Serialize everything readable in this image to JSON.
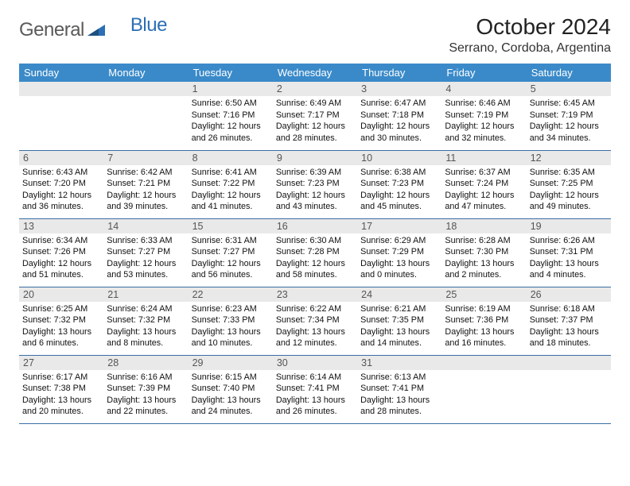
{
  "brand": {
    "part1": "General",
    "part2": "Blue"
  },
  "title": "October 2024",
  "location": "Serrano, Cordoba, Argentina",
  "colors": {
    "header_bg": "#3a8ac9",
    "row_sep": "#3a6fa5",
    "daynum_bg": "#e9e9e9",
    "logo_gray": "#5a5a5a",
    "logo_blue": "#2b6fb5"
  },
  "weekdays": [
    "Sunday",
    "Monday",
    "Tuesday",
    "Wednesday",
    "Thursday",
    "Friday",
    "Saturday"
  ],
  "first_weekday_index": 2,
  "days": [
    {
      "n": 1,
      "sr": "6:50 AM",
      "ss": "7:16 PM",
      "dl": "12 hours and 26 minutes."
    },
    {
      "n": 2,
      "sr": "6:49 AM",
      "ss": "7:17 PM",
      "dl": "12 hours and 28 minutes."
    },
    {
      "n": 3,
      "sr": "6:47 AM",
      "ss": "7:18 PM",
      "dl": "12 hours and 30 minutes."
    },
    {
      "n": 4,
      "sr": "6:46 AM",
      "ss": "7:19 PM",
      "dl": "12 hours and 32 minutes."
    },
    {
      "n": 5,
      "sr": "6:45 AM",
      "ss": "7:19 PM",
      "dl": "12 hours and 34 minutes."
    },
    {
      "n": 6,
      "sr": "6:43 AM",
      "ss": "7:20 PM",
      "dl": "12 hours and 36 minutes."
    },
    {
      "n": 7,
      "sr": "6:42 AM",
      "ss": "7:21 PM",
      "dl": "12 hours and 39 minutes."
    },
    {
      "n": 8,
      "sr": "6:41 AM",
      "ss": "7:22 PM",
      "dl": "12 hours and 41 minutes."
    },
    {
      "n": 9,
      "sr": "6:39 AM",
      "ss": "7:23 PM",
      "dl": "12 hours and 43 minutes."
    },
    {
      "n": 10,
      "sr": "6:38 AM",
      "ss": "7:23 PM",
      "dl": "12 hours and 45 minutes."
    },
    {
      "n": 11,
      "sr": "6:37 AM",
      "ss": "7:24 PM",
      "dl": "12 hours and 47 minutes."
    },
    {
      "n": 12,
      "sr": "6:35 AM",
      "ss": "7:25 PM",
      "dl": "12 hours and 49 minutes."
    },
    {
      "n": 13,
      "sr": "6:34 AM",
      "ss": "7:26 PM",
      "dl": "12 hours and 51 minutes."
    },
    {
      "n": 14,
      "sr": "6:33 AM",
      "ss": "7:27 PM",
      "dl": "12 hours and 53 minutes."
    },
    {
      "n": 15,
      "sr": "6:31 AM",
      "ss": "7:27 PM",
      "dl": "12 hours and 56 minutes."
    },
    {
      "n": 16,
      "sr": "6:30 AM",
      "ss": "7:28 PM",
      "dl": "12 hours and 58 minutes."
    },
    {
      "n": 17,
      "sr": "6:29 AM",
      "ss": "7:29 PM",
      "dl": "13 hours and 0 minutes."
    },
    {
      "n": 18,
      "sr": "6:28 AM",
      "ss": "7:30 PM",
      "dl": "13 hours and 2 minutes."
    },
    {
      "n": 19,
      "sr": "6:26 AM",
      "ss": "7:31 PM",
      "dl": "13 hours and 4 minutes."
    },
    {
      "n": 20,
      "sr": "6:25 AM",
      "ss": "7:32 PM",
      "dl": "13 hours and 6 minutes."
    },
    {
      "n": 21,
      "sr": "6:24 AM",
      "ss": "7:32 PM",
      "dl": "13 hours and 8 minutes."
    },
    {
      "n": 22,
      "sr": "6:23 AM",
      "ss": "7:33 PM",
      "dl": "13 hours and 10 minutes."
    },
    {
      "n": 23,
      "sr": "6:22 AM",
      "ss": "7:34 PM",
      "dl": "13 hours and 12 minutes."
    },
    {
      "n": 24,
      "sr": "6:21 AM",
      "ss": "7:35 PM",
      "dl": "13 hours and 14 minutes."
    },
    {
      "n": 25,
      "sr": "6:19 AM",
      "ss": "7:36 PM",
      "dl": "13 hours and 16 minutes."
    },
    {
      "n": 26,
      "sr": "6:18 AM",
      "ss": "7:37 PM",
      "dl": "13 hours and 18 minutes."
    },
    {
      "n": 27,
      "sr": "6:17 AM",
      "ss": "7:38 PM",
      "dl": "13 hours and 20 minutes."
    },
    {
      "n": 28,
      "sr": "6:16 AM",
      "ss": "7:39 PM",
      "dl": "13 hours and 22 minutes."
    },
    {
      "n": 29,
      "sr": "6:15 AM",
      "ss": "7:40 PM",
      "dl": "13 hours and 24 minutes."
    },
    {
      "n": 30,
      "sr": "6:14 AM",
      "ss": "7:41 PM",
      "dl": "13 hours and 26 minutes."
    },
    {
      "n": 31,
      "sr": "6:13 AM",
      "ss": "7:41 PM",
      "dl": "13 hours and 28 minutes."
    }
  ],
  "labels": {
    "sunrise": "Sunrise:",
    "sunset": "Sunset:",
    "daylight": "Daylight:"
  }
}
